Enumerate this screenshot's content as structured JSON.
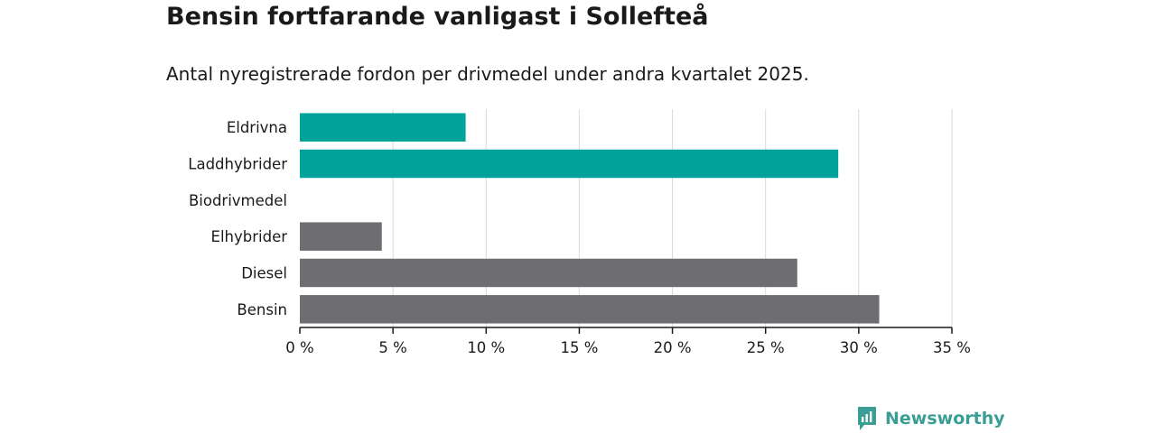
{
  "title": "Bensin fortfarande vanligast i Sollefteå",
  "subtitle": "Antal nyregistrerade fordon per drivmedel under andra kvartalet 2025.",
  "brand": "Newsworthy",
  "colors": {
    "highlight": "#00a39a",
    "default": "#6e6d72",
    "grid": "#d9d9d9",
    "brand": "#3a9e94"
  },
  "chart_data": {
    "type": "bar",
    "orientation": "horizontal",
    "categories": [
      "Eldrivna",
      "Laddhybrider",
      "Biodrivmedel",
      "Elhybrider",
      "Diesel",
      "Bensin"
    ],
    "values": [
      8.9,
      28.9,
      0,
      4.4,
      26.7,
      31.1
    ],
    "highlighted": [
      true,
      true,
      false,
      false,
      false,
      false
    ],
    "xlim": [
      0,
      35
    ],
    "xticks": [
      0,
      5,
      10,
      15,
      20,
      25,
      30,
      35
    ],
    "xtick_labels": [
      "0 %",
      "5 %",
      "10 %",
      "15 %",
      "20 %",
      "25 %",
      "30 %",
      "35 %"
    ],
    "grid": true
  }
}
